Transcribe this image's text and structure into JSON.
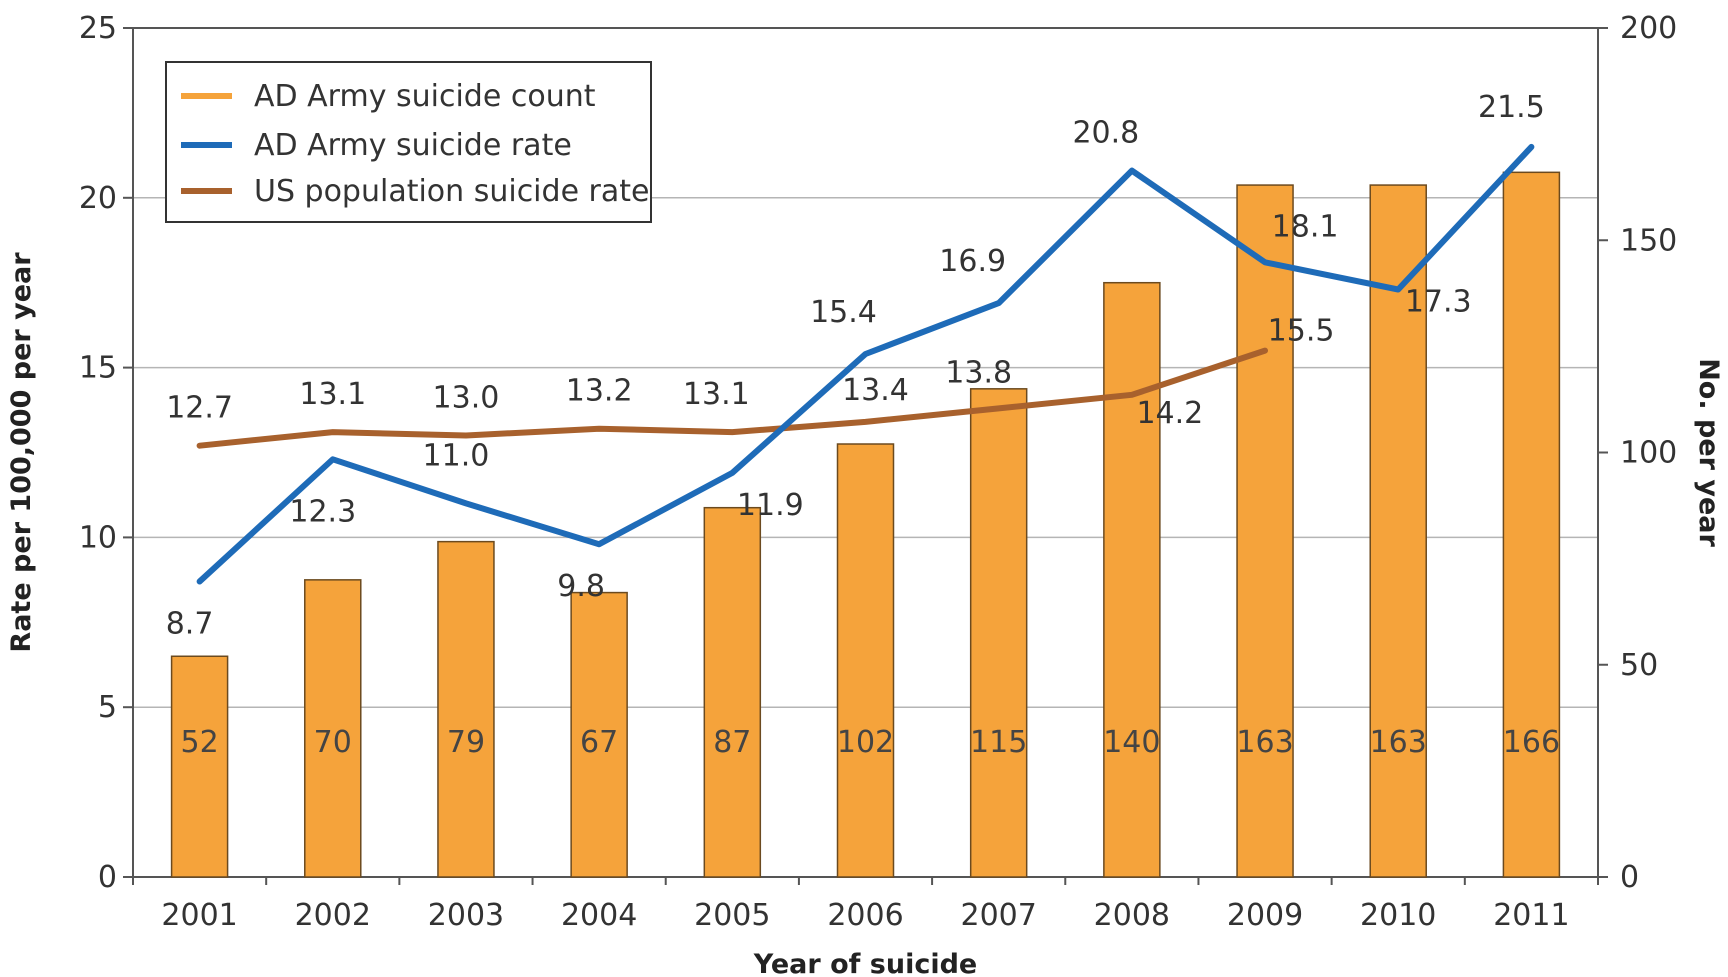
{
  "chart_data": {
    "type": "bar",
    "categories": [
      "2001",
      "2002",
      "2003",
      "2004",
      "2005",
      "2006",
      "2007",
      "2008",
      "2009",
      "2010",
      "2011"
    ],
    "series": [
      {
        "name": "AD Army suicide count",
        "kind": "bar",
        "axis": "right",
        "values": [
          52,
          70,
          79,
          67,
          87,
          102,
          115,
          140,
          163,
          163,
          166
        ]
      },
      {
        "name": "AD Army suicide rate",
        "kind": "line",
        "axis": "left",
        "values": [
          8.7,
          12.3,
          11.0,
          9.8,
          11.9,
          15.4,
          16.9,
          20.8,
          18.1,
          17.3,
          21.5
        ]
      },
      {
        "name": "US population suicide rate",
        "kind": "line",
        "axis": "left",
        "values": [
          12.7,
          13.1,
          13.0,
          13.2,
          13.1,
          13.4,
          13.8,
          14.2,
          15.5,
          null,
          null
        ]
      }
    ],
    "xlabel": "Year of suicide",
    "ylabel": "Rate per 100,000 per year",
    "y2label": "No. per year",
    "ylim": [
      0,
      25
    ],
    "y2lim": [
      0,
      200
    ],
    "yticks": [
      0,
      5,
      10,
      15,
      20,
      25
    ],
    "y2ticks": [
      0,
      50,
      100,
      150,
      200
    ],
    "grid": true,
    "legend": "top-left",
    "colors": {
      "bar": "#F5A33B",
      "bar_edge": "#6b4a1f",
      "army_rate": "#1E6BB8",
      "us_rate": "#A8612D",
      "grid": "#b5b5b5",
      "axis": "#555555"
    }
  }
}
